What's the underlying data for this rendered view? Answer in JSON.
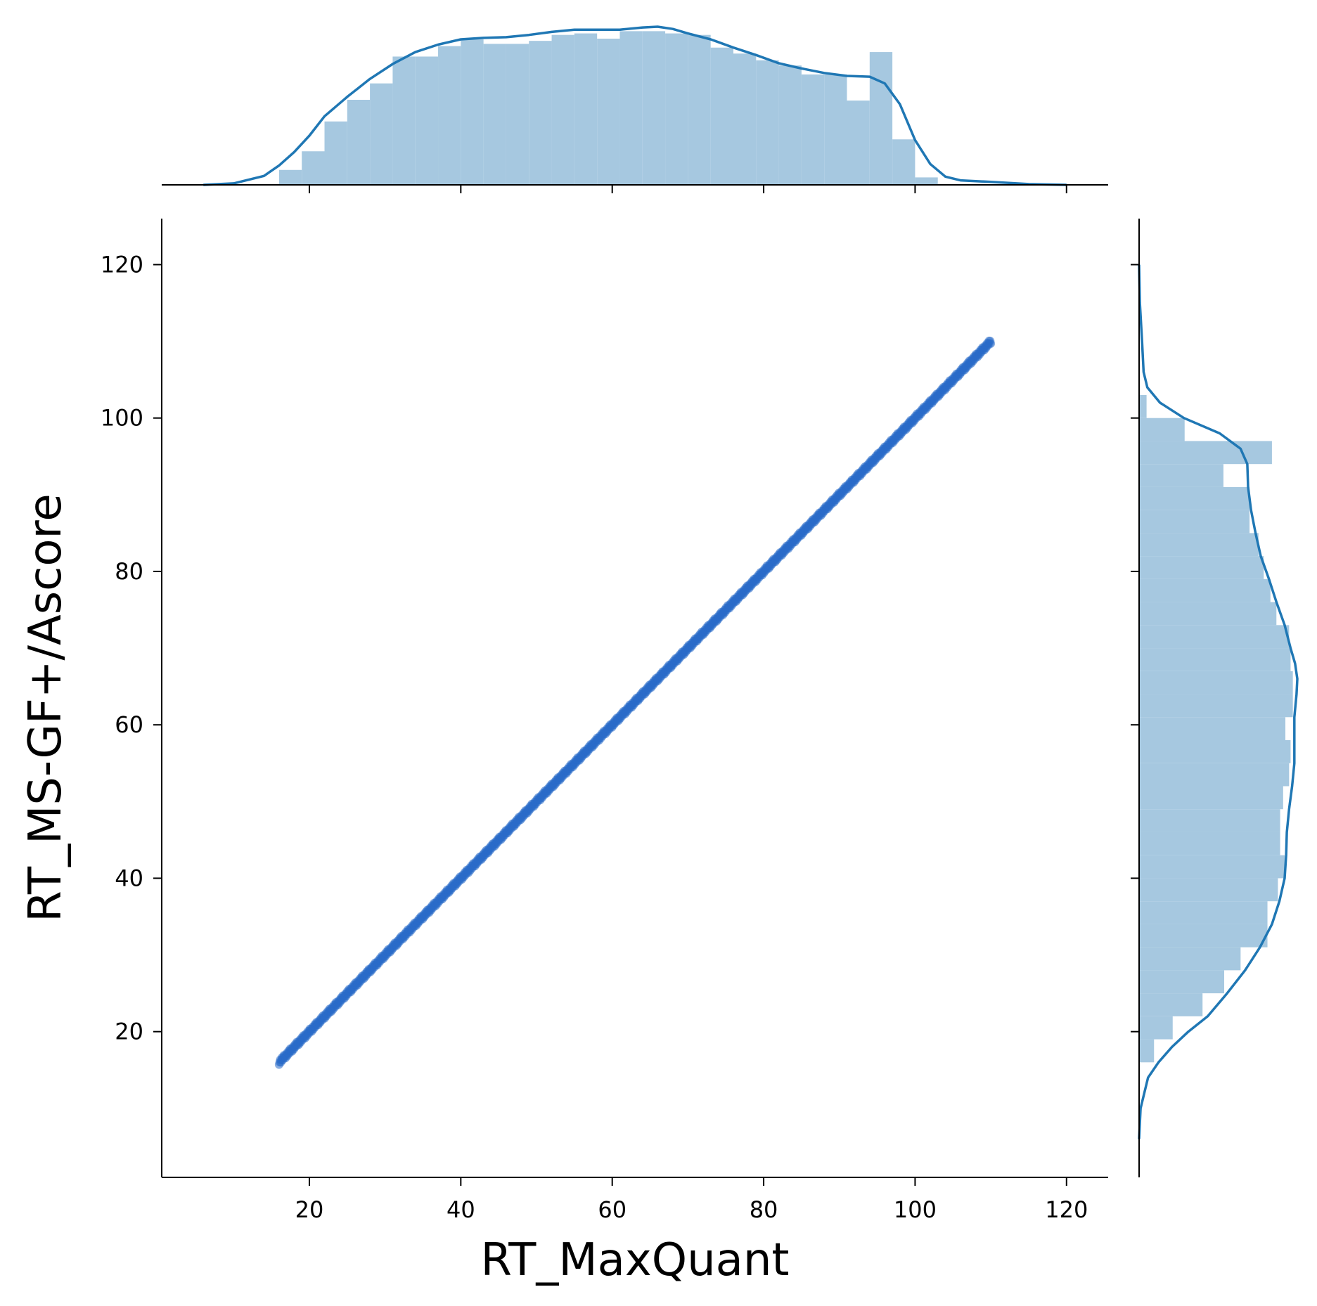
{
  "chart_data": {
    "type": "scatter",
    "variant": "jointplot-with-marginal-histograms-and-kde",
    "xlabel": "RT_MaxQuant",
    "ylabel": "RT_MS-GF+/Ascore",
    "xlim": [
      0.5,
      125.5
    ],
    "ylim": [
      1,
      126
    ],
    "xticks": [
      20,
      40,
      60,
      80,
      100,
      120
    ],
    "yticks": [
      20,
      40,
      60,
      80,
      100,
      120
    ],
    "grid": false,
    "colors": {
      "points": "#2a6cc9",
      "kde": "#1f77b4",
      "hist": "#a6c8e0",
      "axes": "#000000"
    },
    "scatter": {
      "relation": "y = x",
      "x_range": [
        16,
        110
      ]
    },
    "marginal_x": {
      "bin_edges": [
        16,
        19,
        22,
        25,
        28,
        31,
        34,
        37,
        40,
        43,
        46,
        49,
        52,
        55,
        58,
        61,
        64,
        67,
        70,
        73,
        76,
        79,
        82,
        85,
        88,
        91,
        94,
        97,
        100,
        103
      ],
      "density": [
        0.002,
        0.0045,
        0.0085,
        0.0114,
        0.0136,
        0.0172,
        0.0172,
        0.0186,
        0.0195,
        0.0189,
        0.0189,
        0.0193,
        0.0201,
        0.0203,
        0.0196,
        0.0206,
        0.0206,
        0.0203,
        0.0201,
        0.0184,
        0.0176,
        0.0167,
        0.016,
        0.0148,
        0.0148,
        0.0113,
        0.0178,
        0.0061,
        0.001
      ],
      "kde_x": [
        6,
        10,
        14,
        16,
        18,
        20,
        22,
        25,
        28,
        31,
        34,
        37,
        40,
        43,
        46,
        49,
        52,
        55,
        58,
        61,
        64,
        66,
        68,
        70,
        73,
        76,
        79,
        82,
        85,
        88,
        91,
        94,
        96,
        98,
        100,
        102,
        104,
        106,
        110,
        115,
        120
      ],
      "kde_y": [
        0.0,
        0.0002,
        0.0012,
        0.0026,
        0.0044,
        0.0066,
        0.0092,
        0.0118,
        0.0142,
        0.0162,
        0.0178,
        0.0188,
        0.0195,
        0.0197,
        0.0198,
        0.0201,
        0.0205,
        0.0208,
        0.0208,
        0.0208,
        0.0211,
        0.0212,
        0.0209,
        0.0203,
        0.0195,
        0.0184,
        0.0174,
        0.0163,
        0.0156,
        0.015,
        0.0146,
        0.0145,
        0.0136,
        0.0108,
        0.006,
        0.0028,
        0.0011,
        0.0006,
        0.0004,
        0.0001,
        0.0
      ]
    },
    "marginal_y": {
      "bin_edges": [
        16,
        19,
        22,
        25,
        28,
        31,
        34,
        37,
        40,
        43,
        46,
        49,
        52,
        55,
        58,
        61,
        64,
        67,
        70,
        73,
        76,
        79,
        82,
        85,
        88,
        91,
        94,
        97,
        100,
        103
      ],
      "density": [
        0.002,
        0.0045,
        0.0085,
        0.0114,
        0.0136,
        0.0172,
        0.0172,
        0.0186,
        0.0195,
        0.0189,
        0.0189,
        0.0193,
        0.0201,
        0.0203,
        0.0196,
        0.0206,
        0.0206,
        0.0203,
        0.0201,
        0.0184,
        0.0176,
        0.0167,
        0.016,
        0.0148,
        0.0148,
        0.0113,
        0.0178,
        0.0061,
        0.001
      ],
      "kde_y": [
        6,
        10,
        14,
        16,
        18,
        20,
        22,
        25,
        28,
        31,
        34,
        37,
        40,
        43,
        46,
        49,
        52,
        55,
        58,
        61,
        64,
        66,
        68,
        70,
        73,
        76,
        79,
        82,
        85,
        88,
        91,
        94,
        96,
        98,
        100,
        102,
        104,
        106,
        110,
        115,
        120
      ],
      "kde_x": [
        0.0,
        0.0002,
        0.0012,
        0.0026,
        0.0044,
        0.0066,
        0.0092,
        0.0118,
        0.0142,
        0.0162,
        0.0178,
        0.0188,
        0.0195,
        0.0197,
        0.0198,
        0.0201,
        0.0205,
        0.0208,
        0.0208,
        0.0208,
        0.0211,
        0.0212,
        0.0209,
        0.0203,
        0.0195,
        0.0184,
        0.0174,
        0.0163,
        0.0156,
        0.015,
        0.0146,
        0.0145,
        0.0136,
        0.0108,
        0.006,
        0.0028,
        0.0011,
        0.0006,
        0.0004,
        0.0001,
        0.0
      ]
    }
  }
}
